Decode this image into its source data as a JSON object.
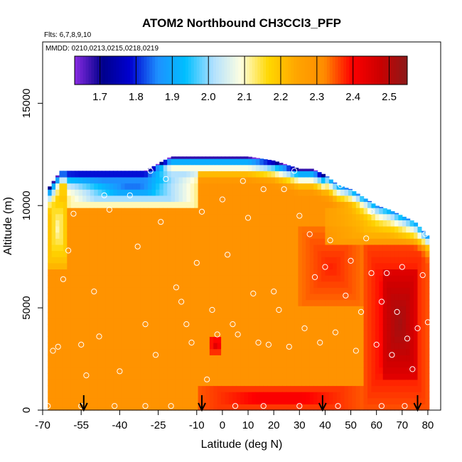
{
  "chart_data": {
    "type": "heatmap",
    "title": "ATOM2 Northbound CH3CCl3_PFP",
    "flights_note": "Flts: 6,7,8,9,10",
    "dates_note": "MMDD: 0210,0213,0215,0218,0219",
    "xlabel": "Latitude (deg N)",
    "ylabel": "Altitude (m)",
    "xlim": [
      -70,
      85
    ],
    "ylim": [
      0,
      18000
    ],
    "x_ticks": [
      -70,
      -55,
      -40,
      -25,
      -10,
      0,
      10,
      20,
      30,
      40,
      50,
      60,
      70,
      80
    ],
    "y_ticks": [
      0,
      5000,
      10000,
      15000
    ],
    "colorbar": {
      "range": [
        1.63,
        2.55
      ],
      "ticks": [
        1.7,
        1.8,
        1.9,
        2.0,
        2.1,
        2.2,
        2.3,
        2.4,
        2.5
      ],
      "colors": [
        "#8a2be2",
        "#00008b",
        "#0000d0",
        "#1e90ff",
        "#00bfff",
        "#b0e0ff",
        "#ffffe0",
        "#ffd700",
        "#ffa500",
        "#ff8c00",
        "#ff0000",
        "#cc0000",
        "#8b1a1a"
      ]
    },
    "arrow_latitudes": [
      -54,
      -8,
      39,
      76
    ],
    "coverage_top_altitude": [
      [
        -68,
        10800
      ],
      [
        -63,
        11700
      ],
      [
        -58,
        11700
      ],
      [
        -50,
        11700
      ],
      [
        -40,
        11700
      ],
      [
        -30,
        11700
      ],
      [
        -20,
        12400
      ],
      [
        -10,
        12400
      ],
      [
        0,
        12400
      ],
      [
        10,
        12400
      ],
      [
        20,
        12200
      ],
      [
        30,
        11800
      ],
      [
        35,
        11800
      ],
      [
        40,
        11500
      ],
      [
        45,
        11000
      ],
      [
        50,
        10800
      ],
      [
        55,
        10400
      ],
      [
        60,
        10000
      ],
      [
        65,
        9800
      ],
      [
        70,
        9500
      ],
      [
        75,
        9200
      ],
      [
        78,
        8800
      ],
      [
        80,
        8500
      ]
    ],
    "field_regions": [
      {
        "lat": [
          -68,
          80
        ],
        "alt": [
          0,
          9000
        ],
        "value": 2.3
      },
      {
        "lat": [
          -10,
          55
        ],
        "alt": [
          0,
          1200
        ],
        "value": 2.42
      },
      {
        "lat": [
          55,
          80
        ],
        "alt": [
          0,
          8500
        ],
        "value": 2.43
      },
      {
        "lat": [
          62,
          76
        ],
        "alt": [
          1500,
          7000
        ],
        "value": 2.52
      },
      {
        "lat": [
          -5,
          0
        ],
        "alt": [
          2800,
          3600
        ],
        "value": 2.45
      },
      {
        "lat": [
          30,
          55
        ],
        "alt": [
          5000,
          9000
        ],
        "value": 2.38
      },
      {
        "lat": [
          -68,
          -60
        ],
        "alt": [
          7000,
          10800
        ],
        "value": 2.1
      },
      {
        "lat": [
          -60,
          -10
        ],
        "alt": [
          10000,
          11700
        ],
        "value": 1.85
      },
      {
        "lat": [
          40,
          80
        ],
        "alt": [
          8000,
          10000
        ],
        "value": 2.2
      }
    ],
    "samples": [
      [
        -68,
        200
      ],
      [
        -66,
        2900
      ],
      [
        -64,
        3100
      ],
      [
        -62,
        6400
      ],
      [
        -60,
        7800
      ],
      [
        -58,
        9600
      ],
      [
        -55,
        3200
      ],
      [
        -53,
        1700
      ],
      [
        -50,
        5800
      ],
      [
        -48,
        3600
      ],
      [
        -46,
        10500
      ],
      [
        -44,
        9800
      ],
      [
        -42,
        200
      ],
      [
        -40,
        1900
      ],
      [
        -36,
        10500
      ],
      [
        -33,
        8000
      ],
      [
        -30,
        4200
      ],
      [
        -28,
        11700
      ],
      [
        -26,
        2700
      ],
      [
        -24,
        9200
      ],
      [
        -22,
        11300
      ],
      [
        -20,
        200
      ],
      [
        -18,
        6000
      ],
      [
        -16,
        5300
      ],
      [
        -14,
        4200
      ],
      [
        -12,
        3300
      ],
      [
        -10,
        7200
      ],
      [
        -8,
        9700
      ],
      [
        -6,
        1500
      ],
      [
        -4,
        4900
      ],
      [
        -2,
        3700
      ],
      [
        0,
        10300
      ],
      [
        2,
        7600
      ],
      [
        4,
        4200
      ],
      [
        6,
        3700
      ],
      [
        8,
        11200
      ],
      [
        10,
        9400
      ],
      [
        12,
        5700
      ],
      [
        14,
        3300
      ],
      [
        16,
        10800
      ],
      [
        18,
        3200
      ],
      [
        20,
        5800
      ],
      [
        22,
        4900
      ],
      [
        24,
        10800
      ],
      [
        26,
        3100
      ],
      [
        28,
        11700
      ],
      [
        30,
        9500
      ],
      [
        32,
        4000
      ],
      [
        34,
        8600
      ],
      [
        36,
        6500
      ],
      [
        38,
        3300
      ],
      [
        40,
        7000
      ],
      [
        42,
        8300
      ],
      [
        44,
        3800
      ],
      [
        46,
        11000
      ],
      [
        48,
        5600
      ],
      [
        50,
        7300
      ],
      [
        52,
        2900
      ],
      [
        54,
        4800
      ],
      [
        56,
        8400
      ],
      [
        58,
        6700
      ],
      [
        60,
        3200
      ],
      [
        62,
        5300
      ],
      [
        64,
        6700
      ],
      [
        66,
        2700
      ],
      [
        68,
        4800
      ],
      [
        70,
        7000
      ],
      [
        72,
        3500
      ],
      [
        74,
        2000
      ],
      [
        76,
        4000
      ],
      [
        78,
        6600
      ],
      [
        79,
        8600
      ],
      [
        80,
        4300
      ],
      [
        62,
        200
      ],
      [
        71,
        200
      ],
      [
        45,
        200
      ],
      [
        30,
        200
      ],
      [
        16,
        200
      ],
      [
        5,
        200
      ],
      [
        -30,
        200
      ],
      [
        -55,
        200
      ],
      [
        76,
        9500
      ],
      [
        58,
        9700
      ]
    ]
  }
}
